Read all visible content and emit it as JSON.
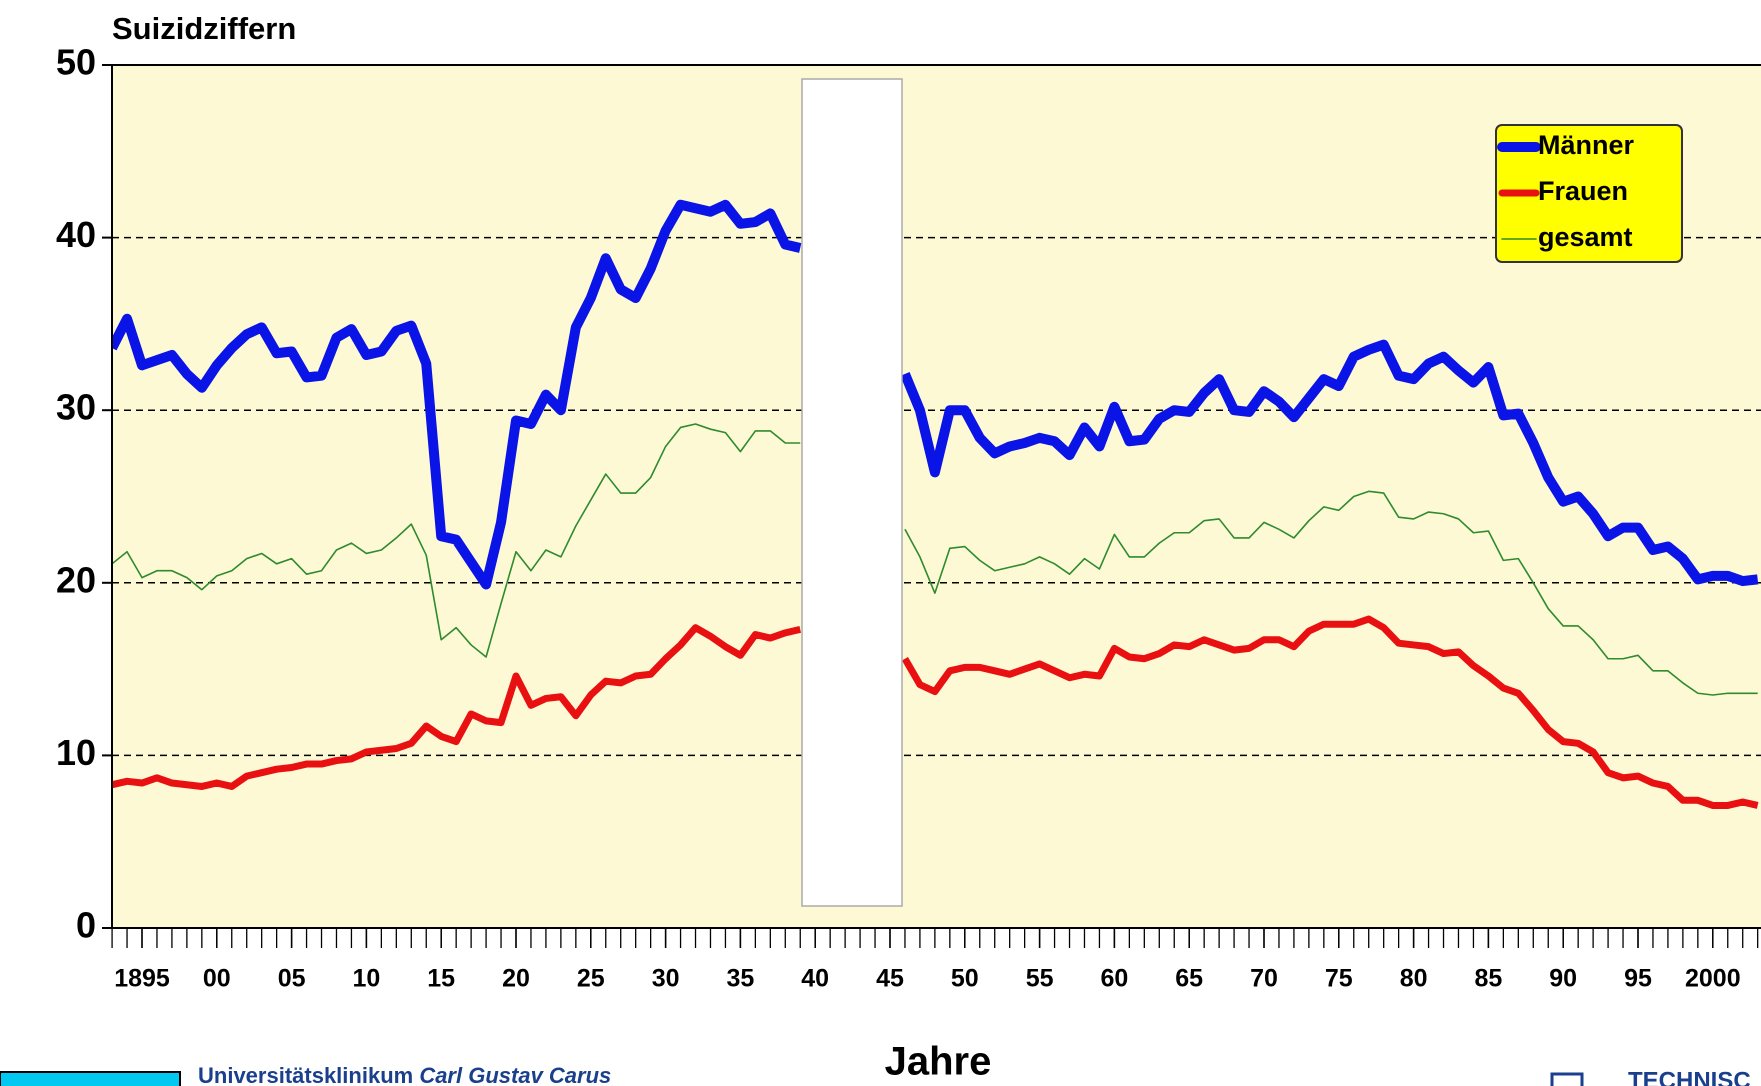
{
  "chart_data": {
    "type": "line",
    "ylabel": "Suizidziffern",
    "xlabel": "Jahre",
    "x": [
      1893,
      1894,
      1895,
      1896,
      1897,
      1898,
      1899,
      1900,
      1901,
      1902,
      1903,
      1904,
      1905,
      1906,
      1907,
      1908,
      1909,
      1910,
      1911,
      1912,
      1913,
      1914,
      1915,
      1916,
      1917,
      1918,
      1919,
      1920,
      1921,
      1922,
      1923,
      1924,
      1925,
      1926,
      1927,
      1928,
      1929,
      1930,
      1931,
      1932,
      1933,
      1934,
      1935,
      1936,
      1937,
      1938,
      1939,
      1940,
      1941,
      1942,
      1943,
      1944,
      1945,
      1946,
      1947,
      1948,
      1949,
      1950,
      1951,
      1952,
      1953,
      1954,
      1955,
      1956,
      1957,
      1958,
      1959,
      1960,
      1961,
      1962,
      1963,
      1964,
      1965,
      1966,
      1967,
      1968,
      1969,
      1970,
      1971,
      1972,
      1973,
      1974,
      1975,
      1976,
      1977,
      1978,
      1979,
      1980,
      1981,
      1982,
      1983,
      1984,
      1985,
      1986,
      1987,
      1988,
      1989,
      1990,
      1991,
      1992,
      1993,
      1994,
      1995,
      1996,
      1997,
      1998,
      1999,
      2000,
      2001,
      2002,
      2003
    ],
    "series": [
      {
        "name": "Männer",
        "color": "#0a14e6",
        "values": [
          33.6,
          35.3,
          32.6,
          32.9,
          33.2,
          32.1,
          31.3,
          32.6,
          33.6,
          34.4,
          34.8,
          33.3,
          33.4,
          31.9,
          32.0,
          34.2,
          34.7,
          33.2,
          33.4,
          34.6,
          34.9,
          32.7,
          22.7,
          22.5,
          21.2,
          19.9,
          23.5,
          29.4,
          29.2,
          30.9,
          30.0,
          34.8,
          36.5,
          38.8,
          37.0,
          36.5,
          38.2,
          40.4,
          41.9,
          41.7,
          41.5,
          41.9,
          40.8,
          40.9,
          41.4,
          39.6,
          39.4,
          null,
          null,
          null,
          null,
          null,
          null,
          32.1,
          30.0,
          26.4,
          30.0,
          30.0,
          28.4,
          27.5,
          27.9,
          28.1,
          28.4,
          28.2,
          27.4,
          29.0,
          27.9,
          30.2,
          28.2,
          28.3,
          29.5,
          30.0,
          29.9,
          31.0,
          31.8,
          30.0,
          29.9,
          31.1,
          30.5,
          29.6,
          30.7,
          31.8,
          31.4,
          33.1,
          33.5,
          33.8,
          32.0,
          31.8,
          32.7,
          33.1,
          32.3,
          31.6,
          32.5,
          29.7,
          29.8,
          28.1,
          26.1,
          24.7,
          25.0,
          24.0,
          22.7,
          23.2,
          23.2,
          21.9,
          22.1,
          21.4,
          20.2,
          20.4,
          20.4,
          20.1,
          20.2
        ]
      },
      {
        "name": "Frauen",
        "color": "#e81010",
        "values": [
          8.3,
          8.5,
          8.4,
          8.7,
          8.4,
          8.3,
          8.2,
          8.4,
          8.2,
          8.8,
          9.0,
          9.2,
          9.3,
          9.5,
          9.5,
          9.7,
          9.8,
          10.2,
          10.3,
          10.4,
          10.7,
          11.7,
          11.1,
          10.8,
          12.4,
          12.0,
          11.9,
          14.6,
          12.9,
          13.3,
          13.4,
          12.3,
          13.5,
          14.3,
          14.2,
          14.6,
          14.7,
          15.6,
          16.4,
          17.4,
          16.9,
          16.3,
          15.8,
          17.0,
          16.8,
          17.1,
          17.3,
          null,
          null,
          null,
          null,
          null,
          null,
          15.6,
          14.1,
          13.7,
          14.9,
          15.1,
          15.1,
          14.9,
          14.7,
          15.0,
          15.3,
          14.9,
          14.5,
          14.7,
          14.6,
          16.2,
          15.7,
          15.6,
          15.9,
          16.4,
          16.3,
          16.7,
          16.4,
          16.1,
          16.2,
          16.7,
          16.7,
          16.3,
          17.2,
          17.6,
          17.6,
          17.6,
          17.9,
          17.4,
          16.5,
          16.4,
          16.3,
          15.9,
          16.0,
          15.2,
          14.6,
          13.9,
          13.6,
          12.6,
          11.5,
          10.8,
          10.7,
          10.2,
          9.0,
          8.7,
          8.8,
          8.4,
          8.2,
          7.4,
          7.4,
          7.1,
          7.1,
          7.3,
          7.1
        ]
      },
      {
        "name": "gesamt",
        "color": "#2e8b2e",
        "values": [
          21.1,
          21.8,
          20.3,
          20.7,
          20.7,
          20.3,
          19.6,
          20.4,
          20.7,
          21.4,
          21.7,
          21.1,
          21.4,
          20.5,
          20.7,
          21.9,
          22.3,
          21.7,
          21.9,
          22.6,
          23.4,
          21.6,
          16.7,
          17.4,
          16.4,
          15.7,
          18.8,
          21.8,
          20.7,
          21.9,
          21.5,
          23.3,
          24.8,
          26.3,
          25.2,
          25.2,
          26.1,
          27.9,
          29.0,
          29.2,
          28.9,
          28.7,
          27.6,
          28.8,
          28.8,
          28.1,
          28.1,
          null,
          null,
          null,
          null,
          null,
          null,
          23.1,
          21.5,
          19.4,
          22.0,
          22.1,
          21.3,
          20.7,
          20.9,
          21.1,
          21.5,
          21.1,
          20.5,
          21.4,
          20.8,
          22.8,
          21.5,
          21.5,
          22.3,
          22.9,
          22.9,
          23.6,
          23.7,
          22.6,
          22.6,
          23.5,
          23.1,
          22.6,
          23.6,
          24.4,
          24.2,
          25.0,
          25.3,
          25.2,
          23.8,
          23.7,
          24.1,
          24.0,
          23.7,
          22.9,
          23.0,
          21.3,
          21.4,
          20.0,
          18.5,
          17.5,
          17.5,
          16.7,
          15.6,
          15.6,
          15.8,
          14.9,
          14.9,
          14.2,
          13.6,
          13.5,
          13.6,
          13.6,
          13.6
        ]
      }
    ],
    "xlim": [
      1893,
      2003
    ],
    "ylim": [
      0,
      50
    ],
    "yticks": [
      0,
      10,
      20,
      30,
      40,
      50
    ],
    "xticks": [
      {
        "value": 1895,
        "label": "1895"
      },
      {
        "value": 1900,
        "label": "00"
      },
      {
        "value": 1905,
        "label": "05"
      },
      {
        "value": 1910,
        "label": "10"
      },
      {
        "value": 1915,
        "label": "15"
      },
      {
        "value": 1920,
        "label": "20"
      },
      {
        "value": 1925,
        "label": "25"
      },
      {
        "value": 1930,
        "label": "30"
      },
      {
        "value": 1935,
        "label": "35"
      },
      {
        "value": 1940,
        "label": "40"
      },
      {
        "value": 1945,
        "label": "45"
      },
      {
        "value": 1950,
        "label": "50"
      },
      {
        "value": 1955,
        "label": "55"
      },
      {
        "value": 1960,
        "label": "60"
      },
      {
        "value": 1965,
        "label": "65"
      },
      {
        "value": 1970,
        "label": "70"
      },
      {
        "value": 1975,
        "label": "75"
      },
      {
        "value": 1980,
        "label": "80"
      },
      {
        "value": 1985,
        "label": "85"
      },
      {
        "value": 1990,
        "label": "90"
      },
      {
        "value": 1995,
        "label": "95"
      },
      {
        "value": 2000,
        "label": "2000"
      }
    ],
    "grid": true,
    "legend": "upper right"
  },
  "footer": {
    "institution": "Universitätsklinikum",
    "institution_name": "Carl Gustav Carus",
    "university": "TECHNISC"
  }
}
